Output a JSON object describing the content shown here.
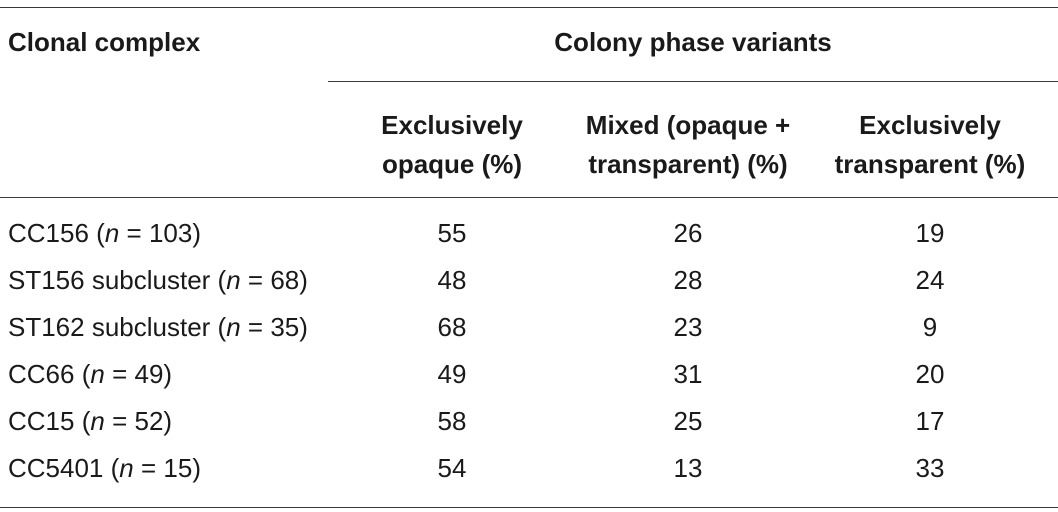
{
  "table": {
    "header": {
      "clonal_complex": "Clonal complex",
      "group": "Colony phase variants",
      "columns": [
        {
          "line1": "Exclusively",
          "line2": "opaque (%)"
        },
        {
          "line1": "Mixed (opaque +",
          "line2": "transparent) (%)"
        },
        {
          "line1": "Exclusively",
          "line2": "transparent (%)"
        }
      ]
    },
    "rows": [
      {
        "name": "CC156",
        "n": "n",
        "count": "103",
        "values": [
          "55",
          "26",
          "19"
        ]
      },
      {
        "name": "ST156 subcluster",
        "n": "n",
        "count": "68",
        "values": [
          "48",
          "28",
          "24"
        ]
      },
      {
        "name": "ST162 subcluster",
        "n": "n",
        "count": "35",
        "values": [
          "68",
          "23",
          "9"
        ]
      },
      {
        "name": "CC66",
        "n": "n",
        "count": "49",
        "values": [
          "49",
          "31",
          "20"
        ]
      },
      {
        "name": "CC15",
        "n": "n",
        "count": "52",
        "values": [
          "58",
          "25",
          "17"
        ]
      },
      {
        "name": "CC5401",
        "n": "n",
        "count": "15",
        "values": [
          "54",
          "13",
          "33"
        ]
      }
    ]
  }
}
